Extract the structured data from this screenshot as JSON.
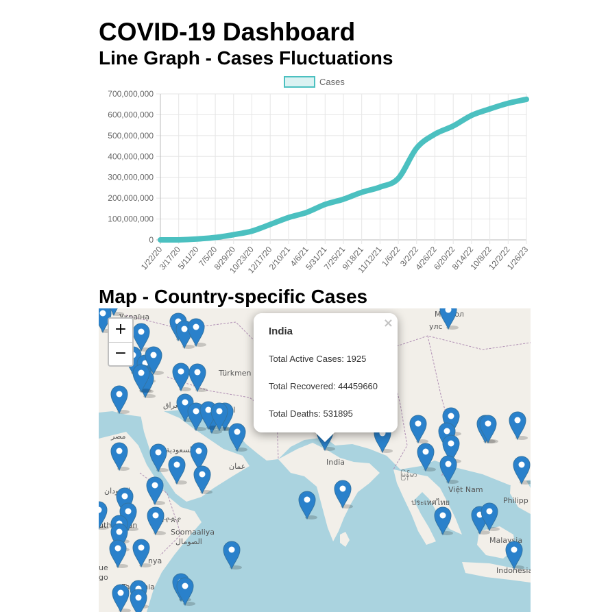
{
  "header": {
    "title": "COVID-19 Dashboard",
    "line_section_title": "Line Graph - Cases Fluctuations",
    "map_section_title": "Map - Country-specific Cases"
  },
  "chart_data": {
    "type": "line",
    "ylim": [
      0,
      700000000
    ],
    "y_ticks": [
      "700,000,000",
      "600,000,000",
      "500,000,000",
      "400,000,000",
      "300,000,000",
      "200,000,000",
      "100,000,000",
      "0"
    ],
    "x_ticks": [
      "1/22/20",
      "3/17/20",
      "5/11/20",
      "7/5/20",
      "8/29/20",
      "10/23/20",
      "12/17/20",
      "2/10/21",
      "4/6/21",
      "5/31/21",
      "7/25/21",
      "9/18/21",
      "11/12/21",
      "1/6/22",
      "3/2/22",
      "4/26/22",
      "6/20/22",
      "8/14/22",
      "10/8/22",
      "12/2/22",
      "1/26/23"
    ],
    "grid": true,
    "legend_position": "top",
    "series": [
      {
        "name": "Cases",
        "color": "#4bc0c0",
        "values": [
          555,
          190000,
          4200000,
          11500000,
          25000000,
          42000000,
          74000000,
          107000000,
          132000000,
          170000000,
          195000000,
          228000000,
          253000000,
          295000000,
          440000000,
          507000000,
          546000000,
          597000000,
          628000000,
          655000000,
          674000000
        ]
      }
    ]
  },
  "map": {
    "zoom_in": "+",
    "zoom_out": "−",
    "popup": {
      "country": "India",
      "close": "×",
      "active_text": "Total Active Cases: 1925",
      "recovered_text": "Total Recovered: 44459660",
      "deaths_text": "Total Deaths: 531895"
    },
    "labels": [
      "Україна",
      "Türkmen",
      "ایران",
      "العراق",
      "السعودية",
      "عمان",
      "مصر",
      "السودان",
      "ኢትዮጵያ",
      "Soomaaliya",
      "الصومال",
      "Tanzania",
      "India",
      "Việt Nam",
      "Malaysia",
      "Indonesia",
      "Philipp",
      "ประเทศไทย",
      "မြန်မာ",
      "Монгол",
      "улс",
      "uth Sudan",
      "nya",
      "ue",
      "go"
    ],
    "colors": {
      "marker": "#2a81cb",
      "marker_dark": "#3274a3",
      "land": "#f2efe9",
      "water": "#aad3df",
      "border": "#b08fb4"
    }
  }
}
